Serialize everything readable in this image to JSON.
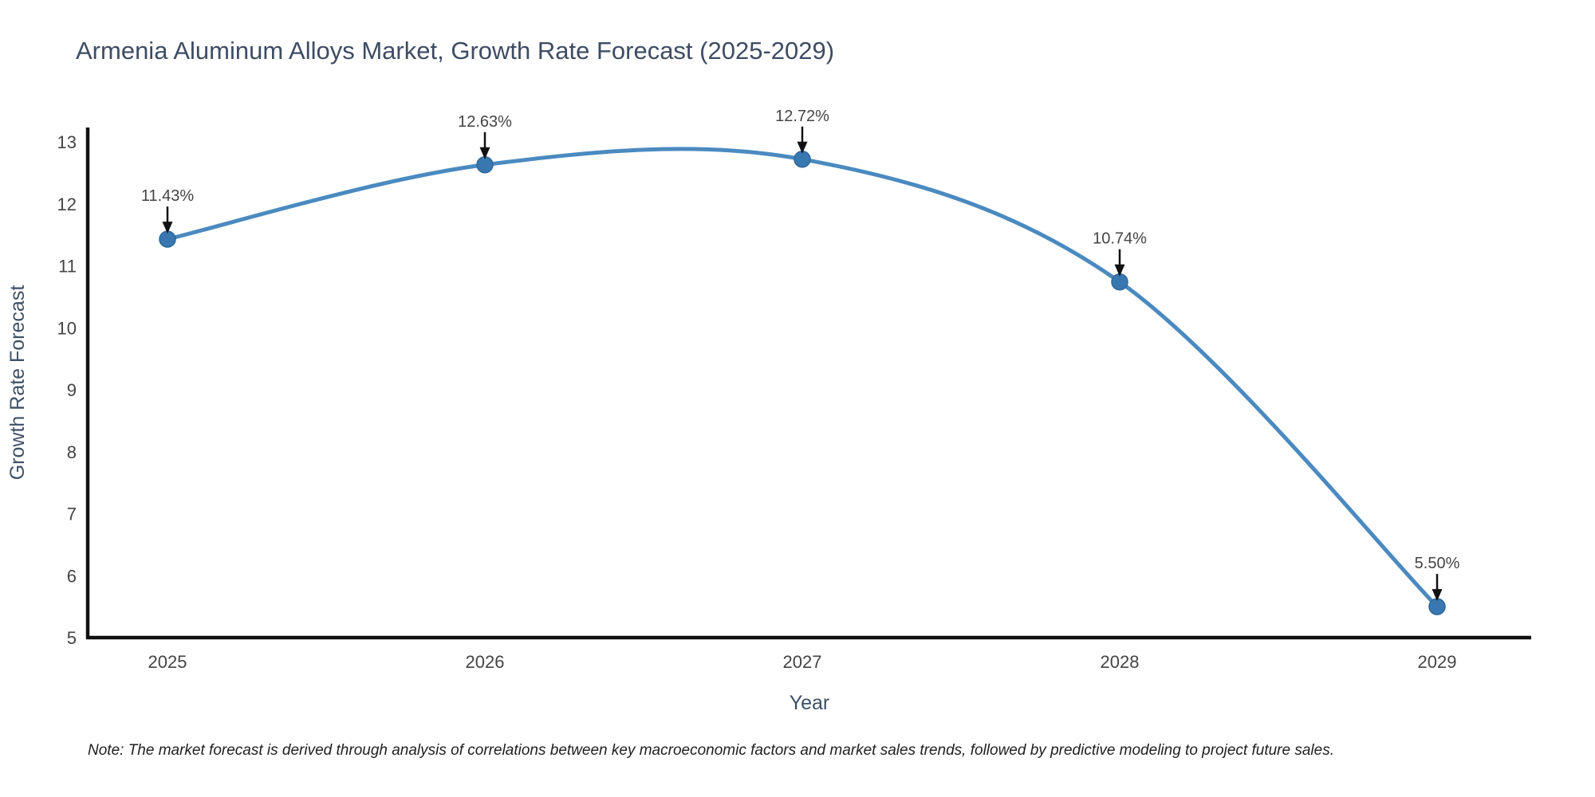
{
  "title": "Armenia Aluminum Alloys Market, Growth Rate Forecast (2025-2029)",
  "note": "Note: The market forecast is derived through analysis of correlations between key macroeconomic factors and market sales trends, followed by predictive modeling to project future sales.",
  "chart_data": {
    "type": "line",
    "line_shape": "spline",
    "x": [
      2025,
      2026,
      2027,
      2028,
      2029
    ],
    "xticks": [
      "2025",
      "2026",
      "2027",
      "2028",
      "2029"
    ],
    "yticks": [
      5,
      6,
      7,
      8,
      9,
      10,
      11,
      12,
      13
    ],
    "ylim": [
      5,
      13
    ],
    "series": [
      {
        "name": "Growth Rate Forecast",
        "values": [
          11.43,
          12.63,
          12.72,
          10.74,
          5.5
        ]
      }
    ],
    "point_labels": [
      "11.43%",
      "12.63%",
      "12.72%",
      "10.74%",
      "5.50%"
    ],
    "title": "Armenia Aluminum Alloys Market, Growth Rate Forecast (2025-2029)",
    "xlabel": "Year",
    "ylabel": "Growth Rate Forecast",
    "grid": false,
    "legend": "none",
    "colors": {
      "line": "#4a8ac0",
      "marker": "#3877b0",
      "marker_edge": "#2f6899",
      "axis": "#111111",
      "tick_label": "#444444",
      "annotation": "#444444",
      "arrow": "#111111",
      "title": "#3e4c63",
      "axis_title": "#3e5066",
      "background": "#ffffff"
    }
  }
}
